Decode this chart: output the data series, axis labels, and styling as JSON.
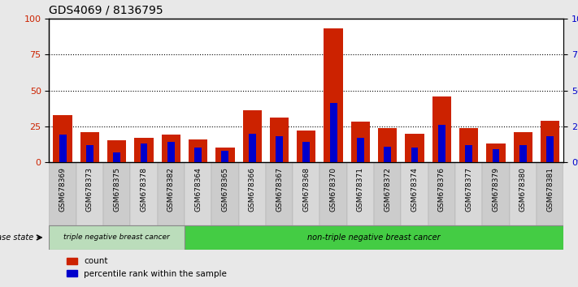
{
  "title": "GDS4069 / 8136795",
  "samples": [
    "GSM678369",
    "GSM678373",
    "GSM678375",
    "GSM678378",
    "GSM678382",
    "GSM678364",
    "GSM678365",
    "GSM678366",
    "GSM678367",
    "GSM678368",
    "GSM678370",
    "GSM678371",
    "GSM678372",
    "GSM678374",
    "GSM678376",
    "GSM678377",
    "GSM678379",
    "GSM678380",
    "GSM678381"
  ],
  "count_values": [
    33,
    21,
    15,
    17,
    19,
    16,
    10,
    36,
    31,
    22,
    93,
    28,
    24,
    20,
    46,
    24,
    13,
    21,
    29
  ],
  "percentile_values": [
    19,
    12,
    7,
    13,
    14,
    10,
    8,
    20,
    18,
    14,
    41,
    17,
    11,
    10,
    26,
    12,
    9,
    12,
    18
  ],
  "group1_count": 5,
  "group2_count": 14,
  "group1_label": "triple negative breast cancer",
  "group2_label": "non-triple negative breast cancer",
  "disease_state_label": "disease state",
  "count_color": "#cc2200",
  "percentile_color": "#0000cc",
  "ylim": [
    0,
    100
  ],
  "yticks": [
    0,
    25,
    50,
    75,
    100
  ],
  "bg_color": "#e8e8e8",
  "plot_bg": "white",
  "xtick_bg": "#d0d0d0",
  "group1_bg": "#bbddbb",
  "group2_bg": "#44cc44",
  "legend_count": "count",
  "legend_percentile": "percentile rank within the sample",
  "right_yaxis_color": "#0000cc",
  "left_yaxis_color": "#cc2200"
}
